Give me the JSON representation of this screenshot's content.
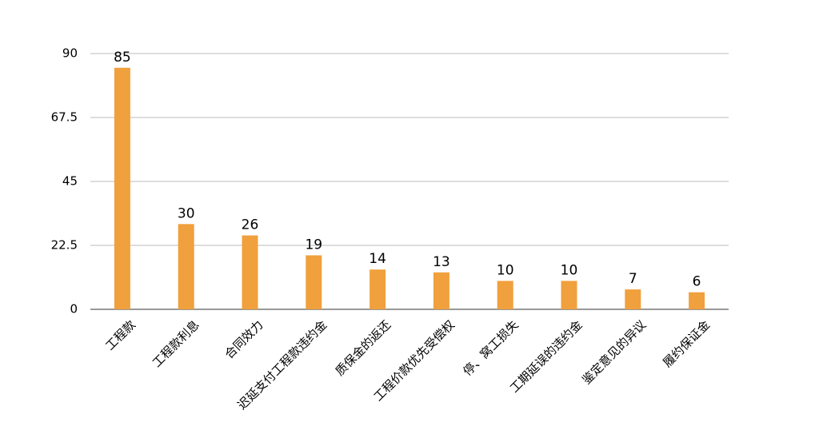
{
  "chart_data": {
    "type": "bar",
    "categories": [
      "工程款",
      "工程款利息",
      "合同效力",
      "迟延支付工程款违约金",
      "质保金的返还",
      "工程价款优先受偿权",
      "停、窝工损失",
      "工期延误的违约金",
      "鉴定意见的异议",
      "履约保证金"
    ],
    "values": [
      85,
      30,
      26,
      19,
      14,
      13,
      10,
      10,
      7,
      6
    ],
    "color": "#f0a03c",
    "ylim": [
      0,
      90
    ],
    "yticks": [
      0,
      22.5,
      45,
      67.5,
      90
    ],
    "grid": true
  }
}
